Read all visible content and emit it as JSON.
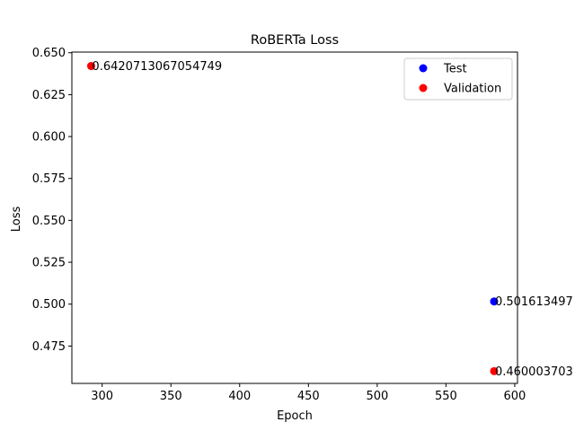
{
  "chart_data": {
    "type": "scatter",
    "title": "RoBERTa Loss",
    "xlabel": "Epoch",
    "ylabel": "Loss",
    "xlim": [
      278,
      602
    ],
    "ylim": [
      0.4527,
      0.6504
    ],
    "x_ticks": [
      300,
      350,
      400,
      450,
      500,
      550,
      600
    ],
    "y_ticks": [
      0.475,
      0.5,
      0.525,
      0.55,
      0.575,
      0.6,
      0.625,
      0.65
    ],
    "y_tick_labels": [
      "0.475",
      "0.500",
      "0.525",
      "0.550",
      "0.575",
      "0.600",
      "0.625",
      "0.650"
    ],
    "legend_position": "top-right",
    "series": [
      {
        "name": "Test",
        "color": "#0000ff",
        "points": [
          {
            "x": 585,
            "y": 0.5016134971,
            "label": "0.501613497"
          }
        ]
      },
      {
        "name": "Validation",
        "color": "#ff0000",
        "points": [
          {
            "x": 292,
            "y": 0.6420713067054749,
            "label": "0.6420713067054749"
          },
          {
            "x": 585,
            "y": 0.4600037037,
            "label": "0.460003703"
          }
        ]
      }
    ]
  }
}
